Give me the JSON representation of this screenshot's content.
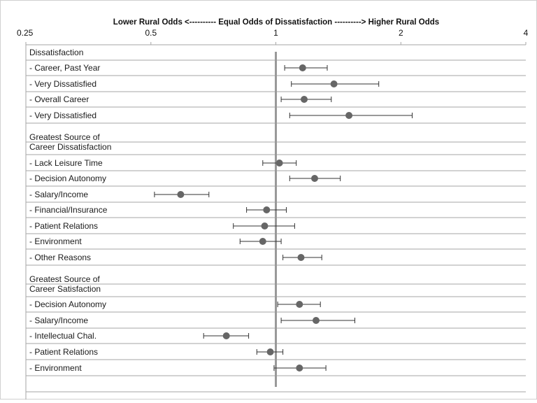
{
  "chart_data": {
    "type": "scatter",
    "title": "Lower Rural Odds <---------- Equal Odds of Dissatisfaction ----------> Higher Rural Odds",
    "x_scale": "log2",
    "xlim": [
      0.25,
      4
    ],
    "x_ticks": [
      "0.25",
      "0.5",
      "1",
      "2",
      "4"
    ],
    "reference_line": 1,
    "grid": "horizontal row separators",
    "rows": [
      {
        "label": "Dissatisfaction"
      },
      {
        "label": "- Career, Past Year",
        "estimate": 1.16,
        "ci_low": 1.05,
        "ci_high": 1.33
      },
      {
        "label": "- Very Dissatisfied",
        "estimate": 1.38,
        "ci_low": 1.09,
        "ci_high": 1.77
      },
      {
        "label": "- Overall Career",
        "estimate": 1.17,
        "ci_low": 1.03,
        "ci_high": 1.36
      },
      {
        "label": "- Very Dissatisfied",
        "estimate": 1.5,
        "ci_low": 1.08,
        "ci_high": 2.13
      },
      {
        "label": "Greatest Source of\nCareer Dissatisfaction"
      },
      {
        "label": "- Lack Leisure Time",
        "estimate": 1.02,
        "ci_low": 0.93,
        "ci_high": 1.12
      },
      {
        "label": "- Decision  Autonomy",
        "estimate": 1.24,
        "ci_low": 1.08,
        "ci_high": 1.43
      },
      {
        "label": "- Salary/Income",
        "estimate": 0.59,
        "ci_low": 0.51,
        "ci_high": 0.69
      },
      {
        "label": "- Financial/Insurance",
        "estimate": 0.95,
        "ci_low": 0.85,
        "ci_high": 1.06
      },
      {
        "label": "- Patient Relations",
        "estimate": 0.94,
        "ci_low": 0.79,
        "ci_high": 1.11
      },
      {
        "label": "- Environment",
        "estimate": 0.93,
        "ci_low": 0.82,
        "ci_high": 1.03
      },
      {
        "label": "- Other Reasons",
        "estimate": 1.15,
        "ci_low": 1.04,
        "ci_high": 1.29
      },
      {
        "label": "Greatest Source of\nCareer Satisfaction"
      },
      {
        "label": "- Decision  Autonomy",
        "estimate": 1.14,
        "ci_low": 1.01,
        "ci_high": 1.28
      },
      {
        "label": "- Salary/Income",
        "estimate": 1.25,
        "ci_low": 1.03,
        "ci_high": 1.55
      },
      {
        "label": "- Intellectual Chal.",
        "estimate": 0.76,
        "ci_low": 0.67,
        "ci_high": 0.86
      },
      {
        "label": "- Patient Relations",
        "estimate": 0.97,
        "ci_low": 0.9,
        "ci_high": 1.04
      },
      {
        "label": "- Environment",
        "estimate": 1.14,
        "ci_low": 0.99,
        "ci_high": 1.32
      }
    ],
    "colors": {
      "marker": "#666666",
      "reference_line": "#999999",
      "gridline": "#a6a6a6",
      "text": "#111111"
    }
  }
}
